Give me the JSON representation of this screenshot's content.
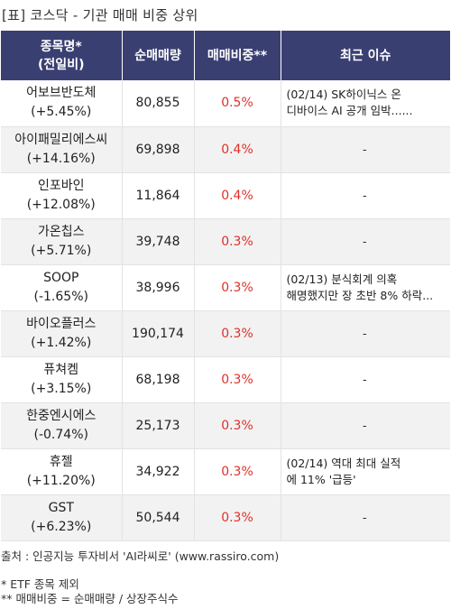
{
  "title": "[표] 코스닥 - 기관 매매 비중 상위",
  "header": {
    "col1": "종목명*\n(전일비)",
    "col1_line1": "종목명*",
    "col1_line2": "(전일비)",
    "col2": "순매매량",
    "col3": "매매비중**",
    "col4": "최근 이슈"
  },
  "rows": [
    {
      "name": "어보브반도체",
      "change": "(+5.45%)",
      "volume": "80,855",
      "ratio": "0.5%",
      "issue_line1": "(02/14) SK하이닉스 온",
      "issue_line2": "디바이스 AI 공개 임박......"
    },
    {
      "name": "아이패밀리에스씨",
      "change": "(+14.16%)",
      "volume": "69,898",
      "ratio": "0.4%",
      "issue_line1": "-",
      "issue_line2": ""
    },
    {
      "name": "인포바인",
      "change": "(+12.08%)",
      "volume": "11,864",
      "ratio": "0.4%",
      "issue_line1": "-",
      "issue_line2": ""
    },
    {
      "name": "가온칩스",
      "change": "(+5.71%)",
      "volume": "39,748",
      "ratio": "0.3%",
      "issue_line1": "-",
      "issue_line2": ""
    },
    {
      "name": "SOOP",
      "change": "(-1.65%)",
      "volume": "38,996",
      "ratio": "0.3%",
      "issue_line1": "(02/13) 분식회계 의혹",
      "issue_line2": "해명했지만 장 초반 8% 하락..."
    },
    {
      "name": "바이오플러스",
      "change": "(+1.42%)",
      "volume": "190,174",
      "ratio": "0.3%",
      "issue_line1": "-",
      "issue_line2": ""
    },
    {
      "name": "퓨쳐켐",
      "change": "(+3.15%)",
      "volume": "68,198",
      "ratio": "0.3%",
      "issue_line1": "-",
      "issue_line2": ""
    },
    {
      "name": "한중엔시에스",
      "change": "(-0.74%)",
      "volume": "25,173",
      "ratio": "0.3%",
      "issue_line1": "-",
      "issue_line2": ""
    },
    {
      "name": "휴젤",
      "change": "(+11.20%)",
      "volume": "34,922",
      "ratio": "0.3%",
      "issue_line1": "(02/14) 역대 최대 실적",
      "issue_line2": "에 11% '급등'"
    },
    {
      "name": "GST",
      "change": "(+6.23%)",
      "volume": "50,544",
      "ratio": "0.3%",
      "issue_line1": "-",
      "issue_line2": ""
    }
  ],
  "footer": {
    "source": "출처 : 인공지능 투자비서 'AI라씨로' (www.rassiro.com)",
    "note1": "* ETF 종목 제외",
    "note2": "** 매매비중 = 순매매량 / 상장주식수"
  },
  "colors": {
    "header_bg": "#3a3f72",
    "ratio_text": "#e0302a",
    "stripe_bg": "#f2f2f2"
  }
}
